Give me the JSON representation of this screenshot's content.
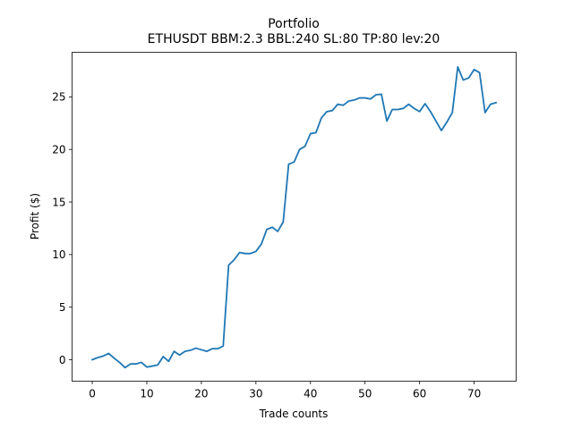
{
  "chart_data": {
    "type": "line",
    "title": "Portfolio",
    "subtitle": "ETHUSDT BBM:2.3 BBL:240 SL:80 TP:80 lev:20",
    "xlabel": "Trade counts",
    "ylabel": "Profit ($)",
    "xlim": [
      -3.7,
      77.7
    ],
    "ylim": [
      -2.04,
      29.24
    ],
    "x_ticks": [
      0,
      10,
      20,
      30,
      40,
      50,
      60,
      70
    ],
    "y_ticks": [
      0,
      5,
      10,
      15,
      20,
      25
    ],
    "grid": false,
    "color": "#1f77b4",
    "series": [
      {
        "x": [
          0,
          1,
          2,
          3,
          4,
          5,
          6,
          7,
          8,
          9,
          10,
          11,
          12,
          13,
          14,
          15,
          16,
          17,
          18,
          19,
          20,
          21,
          22,
          23,
          24,
          25,
          26,
          27,
          28,
          29,
          30,
          31,
          32,
          33,
          34,
          35,
          36,
          37,
          38,
          39,
          40,
          41,
          42,
          43,
          44,
          45,
          46,
          47,
          48,
          49,
          50,
          51,
          52,
          53,
          54,
          55,
          56,
          57,
          58,
          59,
          60,
          61,
          62,
          63,
          64,
          65,
          66,
          67,
          68,
          69,
          70,
          71,
          72,
          73,
          74
        ],
        "values": [
          0.0,
          0.2,
          0.35,
          0.6,
          0.15,
          -0.25,
          -0.75,
          -0.4,
          -0.4,
          -0.25,
          -0.7,
          -0.6,
          -0.5,
          0.3,
          -0.15,
          0.8,
          0.45,
          0.8,
          0.9,
          1.1,
          0.95,
          0.8,
          1.05,
          1.05,
          1.3,
          9.0,
          9.5,
          10.2,
          10.1,
          10.1,
          10.3,
          11.0,
          12.4,
          12.6,
          12.2,
          13.1,
          18.6,
          18.8,
          20.0,
          20.3,
          21.5,
          21.6,
          23.0,
          23.6,
          23.7,
          24.3,
          24.2,
          24.6,
          24.7,
          24.9,
          24.9,
          24.8,
          25.2,
          25.25,
          22.7,
          23.8,
          23.8,
          23.9,
          24.3,
          23.9,
          23.6,
          24.35,
          23.6,
          22.7,
          21.8,
          22.6,
          23.5,
          27.85,
          26.6,
          26.8,
          27.6,
          27.3,
          23.5,
          24.3,
          24.45
        ]
      }
    ]
  }
}
